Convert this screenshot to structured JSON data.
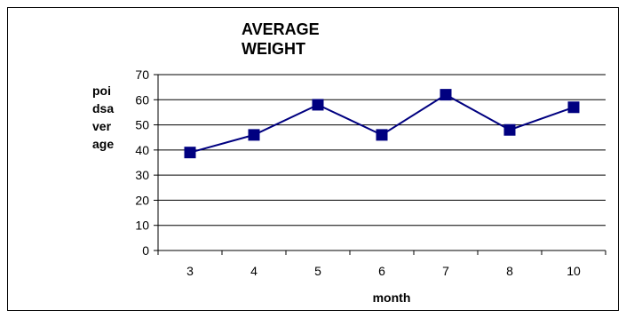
{
  "chart_data": {
    "type": "line",
    "title": "AVERAGE\nWEIGHT",
    "xlabel": "month",
    "ylabel": "poidsaverage",
    "categories": [
      "3",
      "4",
      "5",
      "6",
      "7",
      "8",
      "10"
    ],
    "series": [
      {
        "values": [
          39,
          46,
          58,
          46,
          62,
          48,
          57
        ]
      }
    ],
    "ylim": [
      0,
      70
    ],
    "yticks": [
      0,
      10,
      20,
      30,
      40,
      50,
      60,
      70
    ],
    "grid": true,
    "legend": "none",
    "colors": {
      "line": "#000080",
      "marker": "#000080",
      "grid": "#000000"
    }
  }
}
